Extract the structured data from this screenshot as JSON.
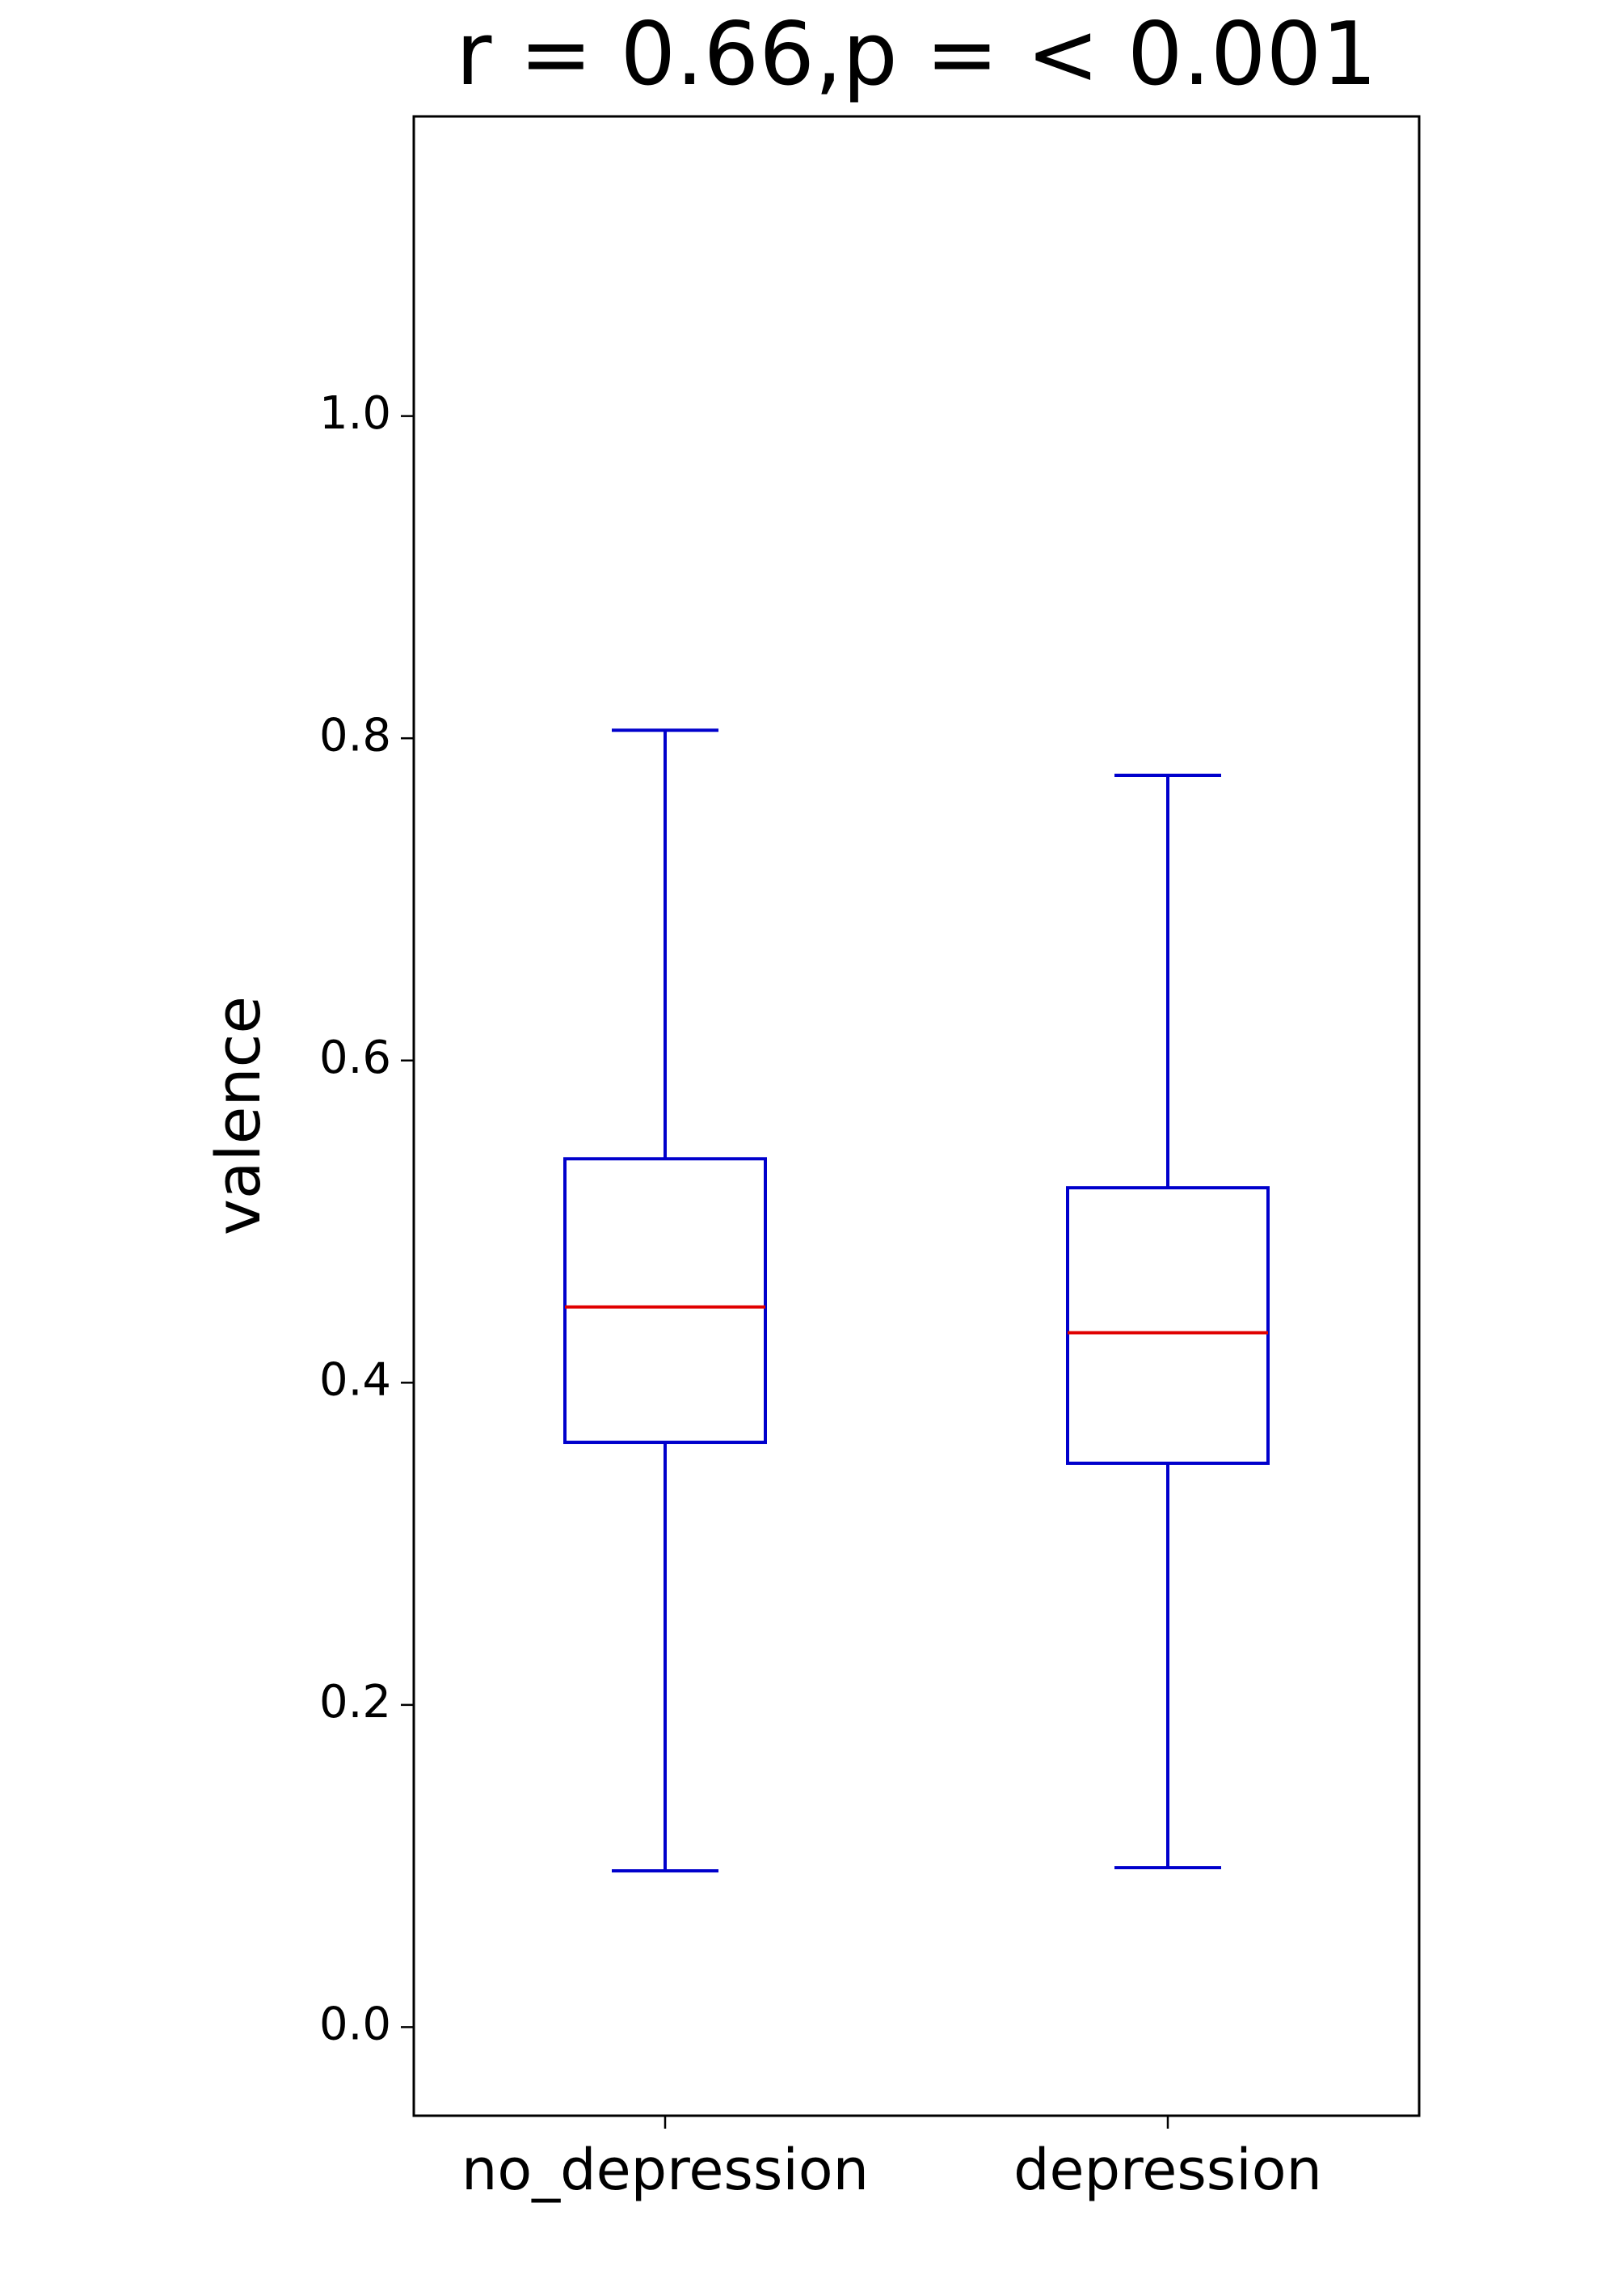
{
  "chart_data": {
    "type": "box",
    "title": "r = 0.66,p = < 0.001",
    "y_label": "valence",
    "categories": [
      "no_depression",
      "depression"
    ],
    "whislo": [
      0.097,
      0.099
    ],
    "q1": [
      0.363,
      0.35
    ],
    "med": [
      0.447,
      0.431
    ],
    "q3": [
      0.539,
      0.521
    ],
    "whishi": [
      0.805,
      0.777
    ],
    "box_color": "#0000cc",
    "median_color": "#e00000",
    "ylim": [
      -0.055,
      1.186
    ],
    "yticks": [
      {
        "value": 0,
        "label": "0.0"
      },
      0.2,
      0.4,
      0.6,
      0.8,
      {
        "value": 1,
        "label": "1.0"
      }
    ]
  }
}
